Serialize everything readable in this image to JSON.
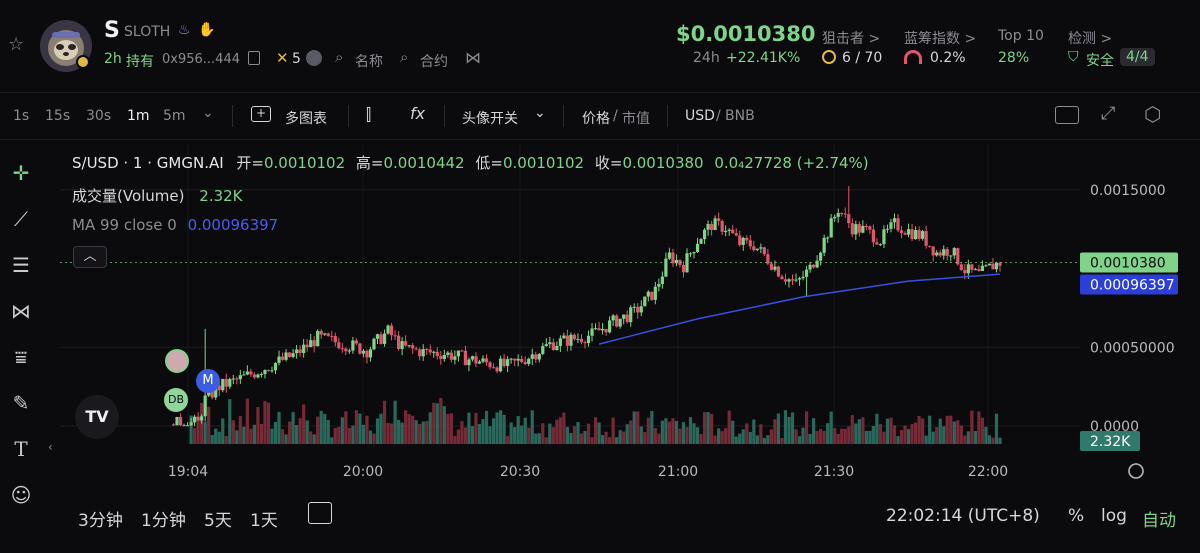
{
  "token": {
    "symbol": "S",
    "name": "SLOTH",
    "age": "2h",
    "holding_label": "持有",
    "address": "0x956...444",
    "x_count": "5",
    "name_label": "名称",
    "contract_label": "合约"
  },
  "price_block": {
    "price": "$0.0010380",
    "period": "24h",
    "volume_24h": "+22.41K%"
  },
  "stats": {
    "sniper_label": "狙击者 >",
    "sniper_value": "6 / 70",
    "bluechip_label": "蓝筹指数 >",
    "bluechip_value": "0.2%",
    "top10_label": "Top 10",
    "top10_value": "28%",
    "check_label": "检测 >",
    "check_value": "安全",
    "check_score": "4/4"
  },
  "toolbar": {
    "intervals": [
      "1s",
      "15s",
      "30s",
      "1m",
      "5m"
    ],
    "active_interval": "1m",
    "multi_chart": "多图表",
    "avatar_toggle": "头像开关",
    "price_label": "价格",
    "mcap_label": "市值",
    "usd_label": "USD",
    "bnb_label": "BNB"
  },
  "legend": {
    "pair": "S/USD · 1 · GMGN.AI",
    "open_label": "开=",
    "open": "0.0010102",
    "high_label": "高=",
    "high": "0.0010442",
    "low_label": "低=",
    "low": "0.0010102",
    "close_label": "收=",
    "close": "0.0010380",
    "change": "0.0₄27728 (+2.74%)",
    "volume_label": "成交量(Volume)",
    "volume_value": "2.32K",
    "ma_label": "MA 99 close 0",
    "ma_value": "0.00096397"
  },
  "markers": {
    "m": "M",
    "db": "DB"
  },
  "bottom": {
    "ranges": [
      "3分钟",
      "1分钟",
      "5天",
      "1天"
    ],
    "clock": "22:02:14 (UTC+8)",
    "percent": "%",
    "log": "log",
    "auto": "自动"
  },
  "colors": {
    "up": "#7fd48a",
    "down": "#e0566c",
    "ma": "#3a4ee0",
    "price_tag": "#7fd48a"
  },
  "chart_data": {
    "type": "candlestick",
    "x_ticks": [
      "19:04",
      "20:00",
      "20:30",
      "21:00",
      "21:30",
      "22:00"
    ],
    "y_ticks": [
      "0.0015000",
      "0.00050000",
      "0.0000"
    ],
    "ylim": [
      0,
      0.0016
    ],
    "last_price_label": "0.0010380",
    "ma_last_label": "0.00096397",
    "volume_last_label": "2.32K",
    "price_path": [
      [
        0,
        1e-05
      ],
      [
        8,
        2e-05
      ],
      [
        10,
        0.00017
      ],
      [
        14,
        0.00025
      ],
      [
        20,
        0.0003
      ],
      [
        28,
        0.00038
      ],
      [
        36,
        0.00046
      ],
      [
        42,
        0.00056
      ],
      [
        50,
        0.00052
      ],
      [
        56,
        0.00048
      ],
      [
        62,
        0.0006
      ],
      [
        66,
        0.0005
      ],
      [
        72,
        0.00047
      ],
      [
        78,
        0.00046
      ],
      [
        84,
        0.00043
      ],
      [
        90,
        0.0004
      ],
      [
        96,
        0.00038
      ],
      [
        102,
        0.00044
      ],
      [
        108,
        0.00052
      ],
      [
        114,
        0.00055
      ],
      [
        120,
        0.00058
      ],
      [
        126,
        0.00066
      ],
      [
        132,
        0.00072
      ],
      [
        138,
        0.00086
      ],
      [
        142,
        0.00108
      ],
      [
        146,
        0.00102
      ],
      [
        150,
        0.00118
      ],
      [
        154,
        0.00128
      ],
      [
        158,
        0.00126
      ],
      [
        162,
        0.00116
      ],
      [
        166,
        0.00115
      ],
      [
        170,
        0.00106
      ],
      [
        174,
        0.00096
      ],
      [
        178,
        0.0009
      ],
      [
        182,
        0.001
      ],
      [
        186,
        0.00118
      ],
      [
        190,
        0.00138
      ],
      [
        194,
        0.00126
      ],
      [
        198,
        0.00124
      ],
      [
        202,
        0.00118
      ],
      [
        206,
        0.00128
      ],
      [
        210,
        0.00124
      ],
      [
        214,
        0.0012
      ],
      [
        218,
        0.0011
      ],
      [
        222,
        0.00112
      ],
      [
        226,
        0.00099
      ],
      [
        230,
        0.00096
      ],
      [
        234,
        0.00102
      ],
      [
        236,
        0.001038
      ]
    ],
    "ma_path": [
      [
        122,
        0.00052
      ],
      [
        150,
        0.00068
      ],
      [
        180,
        0.00082
      ],
      [
        210,
        0.00092
      ],
      [
        236,
        0.00096397
      ]
    ]
  }
}
